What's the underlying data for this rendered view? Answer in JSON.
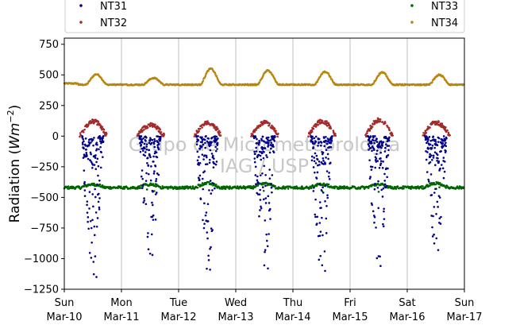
{
  "chart_data": {
    "type": "scatter",
    "title": "",
    "ylabel": "Radiation (Wm^-2)",
    "ylabel_prefix": "Radiation (",
    "ylabel_unit_base": "Wm",
    "ylabel_unit_exp": "−2",
    "ylabel_suffix": ")",
    "ylim": [
      -1250,
      800
    ],
    "yticks": [
      -1250,
      -1000,
      -750,
      -500,
      -250,
      0,
      250,
      500,
      750
    ],
    "ytick_labels": [
      "−1250",
      "−1000",
      "−750",
      "−500",
      "−250",
      "0",
      "250",
      "500",
      "750"
    ],
    "xlim": [
      "2019-03-10",
      "2019-03-17"
    ],
    "xticks": [
      {
        "day": "Sun",
        "date": "Mar-10"
      },
      {
        "day": "Mon",
        "date": "Mar-11"
      },
      {
        "day": "Tue",
        "date": "Mar-12"
      },
      {
        "day": "Wed",
        "date": "Mar-13"
      },
      {
        "day": "Thu",
        "date": "Mar-14"
      },
      {
        "day": "Fri",
        "date": "Mar-15"
      },
      {
        "day": "Sat",
        "date": "Mar-16"
      },
      {
        "day": "Sun",
        "date": "Mar-17"
      }
    ],
    "grid": "vertical",
    "legend_position": "top",
    "watermark": [
      "Grupo de Micrometeorologia",
      "IAG / USP"
    ],
    "series": [
      {
        "name": "NT31",
        "color": "#00008b",
        "description": "Daytime only; values between about 0 and -1150",
        "daily_min": [
          -1150,
          -970,
          -1090,
          -1080,
          -1100,
          -1060,
          -930
        ],
        "daily_noon_points": [
          {
            "day": "2019-03-10",
            "hour": 13.5,
            "y": -1150
          },
          {
            "day": "2019-03-11",
            "hour": 13.0,
            "y": -970
          },
          {
            "day": "2019-03-12",
            "hour": 13.2,
            "y": -1090
          },
          {
            "day": "2019-03-13",
            "hour": 13.5,
            "y": -1080
          },
          {
            "day": "2019-03-14",
            "hour": 13.5,
            "y": -1100
          },
          {
            "day": "2019-03-15",
            "hour": 12.8,
            "y": -1060
          },
          {
            "day": "2019-03-16",
            "hour": 13.0,
            "y": -930
          }
        ]
      },
      {
        "name": "NT32",
        "color": "#a52a2a",
        "description": "Daytime only; positive values up to about 120",
        "daily_max": [
          120,
          90,
          110,
          110,
          120,
          130,
          110
        ]
      },
      {
        "name": "NT33",
        "color": "#006400",
        "description": "Continuous; near -420 with daytime rise to about -390",
        "baseline": -420,
        "daily_peak": [
          -395,
          -395,
          -385,
          -390,
          -395,
          -395,
          -385
        ]
      },
      {
        "name": "NT34",
        "color": "#b8860b",
        "description": "Continuous; night about 420, afternoon peak",
        "baseline": 420,
        "daily_peak": [
          505,
          475,
          550,
          535,
          525,
          520,
          500
        ],
        "start_value": 430
      }
    ]
  }
}
